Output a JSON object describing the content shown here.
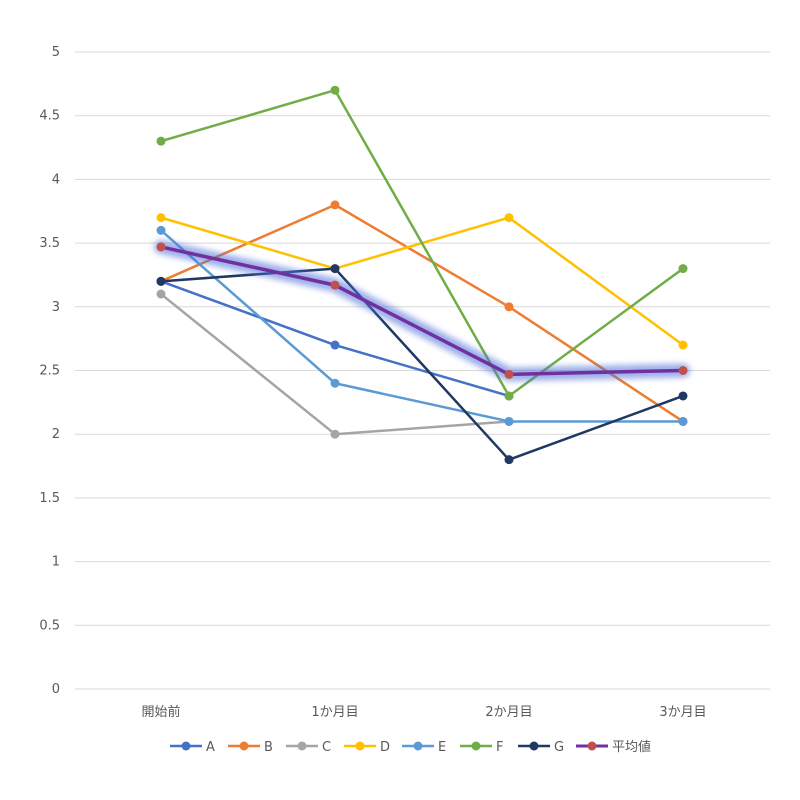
{
  "chart_data": {
    "type": "line",
    "categories": [
      "開始前",
      "1か月目",
      "2か月目",
      "3か月目"
    ],
    "ylim": [
      0,
      5
    ],
    "yticks": [
      0,
      0.5,
      1,
      1.5,
      2,
      2.5,
      3,
      3.5,
      4,
      4.5,
      5
    ],
    "grid": true,
    "legend_position": "bottom",
    "series": [
      {
        "name": "A",
        "color": "#4472C4",
        "values": [
          3.2,
          2.7,
          2.3,
          null
        ]
      },
      {
        "name": "B",
        "color": "#ED7D31",
        "values": [
          3.2,
          3.8,
          3.0,
          2.1
        ]
      },
      {
        "name": "C",
        "color": "#A5A5A5",
        "values": [
          3.1,
          2.0,
          2.1,
          null
        ]
      },
      {
        "name": "D",
        "color": "#FFC000",
        "values": [
          3.7,
          3.3,
          3.7,
          2.7
        ]
      },
      {
        "name": "E",
        "color": "#5B9BD5",
        "values": [
          3.6,
          2.4,
          2.1,
          2.1
        ]
      },
      {
        "name": "F",
        "color": "#70AD47",
        "values": [
          4.3,
          4.7,
          2.3,
          3.3
        ]
      },
      {
        "name": "G",
        "color": "#1F3864",
        "values": [
          3.2,
          3.3,
          1.8,
          2.3
        ]
      },
      {
        "name": "平均値",
        "color": "#7030A0",
        "marker_color": "#C0504D",
        "highlight": true,
        "values": [
          3.47,
          3.17,
          2.47,
          2.5
        ]
      }
    ]
  }
}
